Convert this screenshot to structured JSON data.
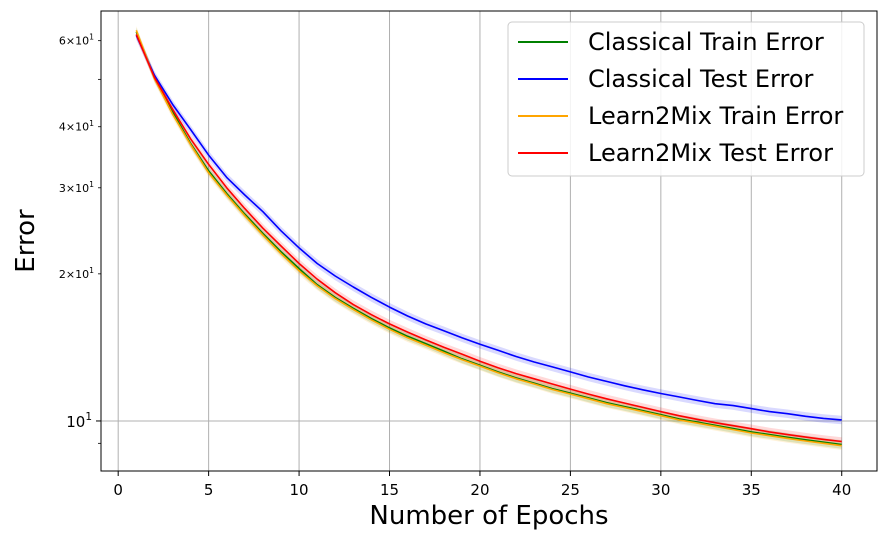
{
  "chart_data": {
    "type": "line",
    "title": "",
    "xlabel": "Number of Epochs",
    "ylabel": "Error",
    "yscale": "log",
    "xlim": [
      -0.95,
      41.95
    ],
    "ylim": [
      7.9,
      69
    ],
    "grid": "vertical major x, horizontal major y",
    "legend_position": "top-right",
    "x_ticks": [
      0,
      5,
      10,
      15,
      20,
      25,
      30,
      35,
      40
    ],
    "y_major_ticks": [
      {
        "value": 10,
        "label": "10^1"
      }
    ],
    "y_minor_ticks": [
      {
        "value": 20,
        "label": "2×10^1"
      },
      {
        "value": 30,
        "label": "3×10^1"
      },
      {
        "value": 40,
        "label": "4×10^1"
      },
      {
        "value": 50,
        "label": ""
      },
      {
        "value": 60,
        "label": "6×10^1"
      },
      {
        "value": 9,
        "label": ""
      }
    ],
    "x": [
      1,
      2,
      3,
      4,
      5,
      6,
      7,
      8,
      9,
      10,
      11,
      12,
      13,
      14,
      15,
      16,
      17,
      18,
      19,
      20,
      21,
      22,
      23,
      24,
      25,
      26,
      27,
      28,
      29,
      30,
      31,
      32,
      33,
      34,
      35,
      36,
      37,
      38,
      39,
      40
    ],
    "series": [
      {
        "name": "Classical Train Error",
        "color": "#008000",
        "values": [
          62.5,
          50.5,
          43.0,
          37.0,
          32.5,
          29.2,
          26.5,
          24.2,
          22.2,
          20.5,
          19.0,
          17.9,
          17.0,
          16.2,
          15.5,
          14.9,
          14.4,
          13.9,
          13.4,
          13.0,
          12.6,
          12.25,
          11.95,
          11.65,
          11.4,
          11.15,
          10.9,
          10.7,
          10.5,
          10.3,
          10.1,
          9.95,
          9.8,
          9.65,
          9.5,
          9.38,
          9.26,
          9.15,
          9.05,
          8.95
        ]
      },
      {
        "name": "Classical Test Error",
        "color": "#0000ff",
        "values": [
          61.5,
          51.0,
          44.5,
          39.5,
          35.0,
          31.5,
          29.0,
          26.8,
          24.5,
          22.6,
          21.0,
          19.8,
          18.8,
          17.9,
          17.1,
          16.4,
          15.8,
          15.3,
          14.8,
          14.35,
          13.95,
          13.55,
          13.2,
          12.9,
          12.6,
          12.3,
          12.05,
          11.8,
          11.58,
          11.38,
          11.2,
          11.02,
          10.85,
          10.75,
          10.6,
          10.45,
          10.35,
          10.22,
          10.12,
          10.05
        ]
      },
      {
        "name": "Learn2Mix Train Error",
        "color": "#ffa500",
        "values": [
          63.0,
          50.2,
          42.5,
          36.8,
          32.2,
          29.0,
          26.3,
          24.0,
          22.0,
          20.3,
          18.9,
          17.8,
          16.9,
          16.1,
          15.4,
          14.8,
          14.3,
          13.8,
          13.35,
          12.95,
          12.55,
          12.2,
          11.9,
          11.6,
          11.35,
          11.1,
          10.85,
          10.65,
          10.45,
          10.25,
          10.05,
          9.9,
          9.75,
          9.6,
          9.45,
          9.33,
          9.21,
          9.1,
          9.0,
          8.9
        ]
      },
      {
        "name": "Learn2Mix Test Error",
        "color": "#ff0000",
        "values": [
          61.8,
          50.5,
          43.5,
          37.8,
          33.5,
          30.0,
          27.2,
          24.8,
          22.8,
          21.0,
          19.5,
          18.3,
          17.3,
          16.5,
          15.8,
          15.2,
          14.65,
          14.15,
          13.7,
          13.25,
          12.85,
          12.5,
          12.2,
          11.9,
          11.62,
          11.35,
          11.1,
          10.88,
          10.66,
          10.45,
          10.25,
          10.08,
          9.92,
          9.78,
          9.64,
          9.5,
          9.38,
          9.27,
          9.17,
          9.08
        ]
      }
    ]
  }
}
